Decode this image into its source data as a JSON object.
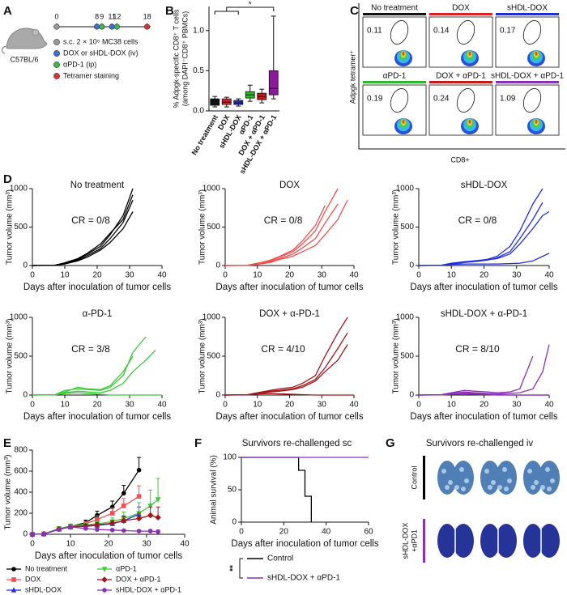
{
  "panel_labels": [
    "A",
    "B",
    "C",
    "D",
    "E",
    "F",
    "G"
  ],
  "schematic": {
    "mouse": "C57BL/6",
    "days": [
      0,
      8,
      9,
      11,
      12,
      18
    ],
    "day_colors": [
      "#9a9a9a",
      "#3a6fd8",
      "#3cb84a",
      "#3a6fd8",
      "#3cb84a",
      "#e03030"
    ],
    "legend": [
      {
        "label": "s.c. 2 × 10⁵ MC38 cells",
        "color": "#9a9a9a"
      },
      {
        "label": "DOX or sHDL-DOX (iv)",
        "color": "#3a6fd8"
      },
      {
        "label": "αPD-1 (ip)",
        "color": "#3cb84a"
      },
      {
        "label": "Tetramer staining",
        "color": "#e03030"
      }
    ]
  },
  "flow": {
    "y_label": "Adpgk tetramer⁺",
    "x_label": "CD8+",
    "plots": [
      {
        "title": "No treatment",
        "value": 0.11,
        "color": "#111111"
      },
      {
        "title": "DOX",
        "value": 0.14,
        "color": "#e02020"
      },
      {
        "title": "sHDL-DOX",
        "value": 0.17,
        "color": "#2030d0"
      },
      {
        "title": "αPD-1",
        "value": 0.19,
        "color": "#2eb82e"
      },
      {
        "title": "DOX + αPD-1",
        "value": 0.24,
        "color": "#c81818"
      },
      {
        "title": "sHDL-DOX + αPD-1",
        "value": 1.09,
        "color": "#8a2fb8"
      }
    ]
  },
  "photos": {
    "title": "Survivors re-challenged iv",
    "rows": [
      {
        "label": [
          "Control"
        ],
        "color": "#000000"
      },
      {
        "label": [
          "sHDL-DOX",
          "+αPD1"
        ],
        "color": "#8a2fb8"
      }
    ]
  },
  "chart_data": [
    {
      "type": "box",
      "ylabel": [
        "% Adpgk-specific CD8⁺ T cells",
        "(among DAPI⁻CD8⁺ PBMCs)"
      ],
      "categories": [
        "No treatment",
        "DOX",
        "sHDL-DOX",
        "αPD-1",
        "DOX + αPD-1",
        "sHDL-DOX + αPD-1"
      ],
      "colors": [
        "#111111",
        "#e02020",
        "#2030d0",
        "#2eb82e",
        "#c81818",
        "#8a1a9a"
      ],
      "boxes": [
        {
          "min": 0.05,
          "q1": 0.07,
          "median": 0.11,
          "q3": 0.15,
          "max": 0.18
        },
        {
          "min": 0.05,
          "q1": 0.08,
          "median": 0.11,
          "q3": 0.15,
          "max": 0.17
        },
        {
          "min": 0.06,
          "q1": 0.08,
          "median": 0.1,
          "q3": 0.13,
          "max": 0.15
        },
        {
          "min": 0.12,
          "q1": 0.16,
          "median": 0.2,
          "q3": 0.24,
          "max": 0.32
        },
        {
          "min": 0.1,
          "q1": 0.14,
          "median": 0.18,
          "q3": 0.22,
          "max": 0.27
        },
        {
          "min": 0.15,
          "q1": 0.2,
          "median": 0.28,
          "q3": 0.5,
          "max": 1.18
        }
      ],
      "ylim": [
        0,
        1.3
      ],
      "yticks": [
        {
          "value": 0,
          "label": "0.0"
        },
        {
          "value": 0.5,
          "label": "0.5"
        },
        {
          "value": 1,
          "label": "1.0"
        }
      ],
      "annotation": "*"
    },
    {
      "type": "line",
      "title": "No treatment",
      "annotation": "CR = 0/8",
      "color": "#000000",
      "xlabel": "Days after inoculation of tumor cells",
      "ylabel": "Tumor volume (mm³)",
      "xlim": [
        0,
        40
      ],
      "xticks": [
        0,
        10,
        20,
        30,
        40
      ],
      "ylim": [
        0,
        1000
      ],
      "yticks": [
        0,
        500,
        1000
      ],
      "x": [
        0,
        7,
        10,
        14,
        17,
        21,
        24,
        28,
        31,
        35,
        38,
        40
      ],
      "series": [
        {
          "values": [
            0,
            5,
            30,
            80,
            150,
            250,
            400,
            650,
            1000,
            null,
            null,
            null
          ]
        },
        {
          "values": [
            0,
            5,
            25,
            70,
            130,
            220,
            350,
            560,
            850,
            null,
            null,
            null
          ]
        },
        {
          "values": [
            0,
            3,
            20,
            60,
            110,
            200,
            300,
            480,
            700,
            null,
            null,
            null
          ]
        },
        {
          "values": [
            0,
            4,
            35,
            90,
            160,
            280,
            420,
            600,
            920,
            null,
            null,
            null
          ]
        }
      ]
    },
    {
      "type": "line",
      "title": "DOX",
      "annotation": "CR = 0/8",
      "color": "#f0504f",
      "xlabel": "Days after inoculation of tumor cells",
      "ylabel": "Tumor volume (mm³)",
      "xlim": [
        0,
        40
      ],
      "xticks": [
        0,
        10,
        20,
        30,
        40
      ],
      "ylim": [
        0,
        1000
      ],
      "yticks": [
        0,
        500,
        1000
      ],
      "x": [
        0,
        7,
        10,
        14,
        17,
        21,
        24,
        28,
        31,
        35,
        38,
        40
      ],
      "series": [
        {
          "values": [
            0,
            5,
            30,
            60,
            110,
            180,
            280,
            450,
            700,
            1000,
            null,
            null
          ]
        },
        {
          "values": [
            0,
            3,
            20,
            50,
            90,
            150,
            230,
            350,
            550,
            800,
            null,
            null
          ]
        },
        {
          "values": [
            0,
            4,
            25,
            70,
            120,
            200,
            320,
            520,
            780,
            null,
            null,
            null
          ]
        },
        {
          "values": [
            0,
            2,
            15,
            40,
            80,
            120,
            180,
            260,
            400,
            600,
            850,
            null
          ]
        }
      ]
    },
    {
      "type": "line",
      "title": "sHDL-DOX",
      "annotation": "CR = 0/8",
      "color": "#1f2fe0",
      "xlabel": "Days after inoculation of tumor cells",
      "ylabel": "Tumor volume (mm³)",
      "xlim": [
        0,
        40
      ],
      "xticks": [
        0,
        10,
        20,
        30,
        40
      ],
      "ylim": [
        0,
        1000
      ],
      "yticks": [
        0,
        500,
        1000
      ],
      "x": [
        0,
        7,
        10,
        14,
        17,
        21,
        24,
        28,
        31,
        35,
        38,
        40
      ],
      "series": [
        {
          "values": [
            0,
            5,
            30,
            50,
            60,
            80,
            120,
            250,
            450,
            800,
            1000,
            null
          ]
        },
        {
          "values": [
            0,
            4,
            20,
            40,
            50,
            70,
            100,
            180,
            350,
            600,
            820,
            null
          ]
        },
        {
          "values": [
            0,
            3,
            25,
            45,
            60,
            75,
            90,
            150,
            280,
            480,
            650,
            700
          ]
        },
        {
          "values": [
            0,
            3,
            15,
            20,
            20,
            20,
            20,
            25,
            30,
            60,
            120,
            160
          ]
        }
      ]
    },
    {
      "type": "line",
      "title": "α-PD-1",
      "annotation": "CR = 3/8",
      "color": "#3dc93a",
      "xlabel": "Days after inoculation of tumor cells",
      "ylabel": "Tumor volume (mm³)",
      "xlim": [
        0,
        40
      ],
      "xticks": [
        0,
        10,
        20,
        30,
        40
      ],
      "ylim": [
        0,
        1000
      ],
      "yticks": [
        0,
        500,
        1000
      ],
      "x": [
        0,
        7,
        10,
        14,
        17,
        21,
        24,
        28,
        31,
        35,
        38,
        40
      ],
      "series": [
        {
          "values": [
            0,
            5,
            60,
            80,
            70,
            60,
            100,
            250,
            550,
            750,
            null,
            null
          ]
        },
        {
          "values": [
            0,
            4,
            40,
            100,
            80,
            70,
            120,
            300,
            500,
            null,
            null,
            null
          ]
        },
        {
          "values": [
            0,
            3,
            30,
            50,
            40,
            30,
            60,
            150,
            300,
            450,
            580,
            null
          ]
        },
        {
          "values": [
            0,
            3,
            20,
            30,
            20,
            10,
            0,
            0,
            0,
            0,
            0,
            0
          ]
        }
      ]
    },
    {
      "type": "line",
      "title": "DOX + α-PD-1",
      "annotation": "CR = 4/10",
      "color": "#a3161a",
      "xlabel": "Days after inoculation of tumor cells",
      "ylabel": "Tumor volume (mm³)",
      "xlim": [
        0,
        40
      ],
      "xticks": [
        0,
        10,
        20,
        30,
        40
      ],
      "ylim": [
        0,
        1000
      ],
      "yticks": [
        0,
        500,
        1000
      ],
      "x": [
        0,
        7,
        10,
        14,
        17,
        21,
        24,
        28,
        31,
        35,
        38,
        40
      ],
      "series": [
        {
          "values": [
            0,
            5,
            30,
            60,
            80,
            100,
            150,
            250,
            500,
            800,
            1000,
            null
          ]
        },
        {
          "values": [
            0,
            4,
            25,
            50,
            60,
            80,
            120,
            200,
            350,
            600,
            800,
            null
          ]
        },
        {
          "values": [
            0,
            3,
            20,
            40,
            50,
            70,
            100,
            180,
            300,
            450,
            650,
            null
          ]
        },
        {
          "values": [
            0,
            2,
            15,
            20,
            15,
            10,
            5,
            0,
            0,
            0,
            0,
            0
          ]
        }
      ]
    },
    {
      "type": "line",
      "title": "sHDL-DOX + α-PD-1",
      "annotation": "CR = 8/10",
      "color": "#8a2fb8",
      "xlabel": "Days after inoculation of tumor cells",
      "ylabel": "Tumor volume (mm³)",
      "xlim": [
        0,
        40
      ],
      "xticks": [
        0,
        10,
        20,
        30,
        40
      ],
      "ylim": [
        0,
        1000
      ],
      "yticks": [
        0,
        500,
        1000
      ],
      "x": [
        0,
        7,
        10,
        14,
        17,
        21,
        24,
        28,
        31,
        35,
        38,
        40
      ],
      "series": [
        {
          "values": [
            0,
            5,
            30,
            60,
            50,
            40,
            30,
            40,
            80,
            500,
            null,
            null
          ]
        },
        {
          "values": [
            0,
            3,
            20,
            40,
            30,
            20,
            15,
            20,
            30,
            80,
            300,
            650
          ]
        },
        {
          "values": [
            0,
            3,
            25,
            30,
            20,
            10,
            5,
            0,
            0,
            0,
            0,
            0
          ]
        },
        {
          "values": [
            0,
            2,
            10,
            15,
            10,
            5,
            0,
            0,
            0,
            0,
            0,
            0
          ]
        }
      ]
    },
    {
      "type": "errorline",
      "xlabel": "Days after inoculation of tumor cells",
      "ylabel": "Tumor volume (mm³)",
      "xlim": [
        0,
        40
      ],
      "xticks": [
        0,
        10,
        20,
        30,
        40
      ],
      "ylim": [
        0,
        800
      ],
      "yticks": [
        0,
        200,
        400,
        600,
        800
      ],
      "x": [
        0,
        3,
        7,
        10,
        14,
        17,
        21,
        24,
        28,
        31,
        33
      ],
      "series": [
        {
          "name": "No treatment",
          "color": "#000000",
          "marker": "circle",
          "values": [
            0,
            3,
            50,
            75,
            110,
            180,
            260,
            390,
            610,
            null,
            null
          ],
          "errors": [
            0,
            2,
            10,
            15,
            25,
            40,
            55,
            75,
            120,
            null,
            null
          ]
        },
        {
          "name": "DOX",
          "color": "#f0504f",
          "marker": "square",
          "values": [
            0,
            3,
            48,
            72,
            100,
            140,
            200,
            270,
            360,
            null,
            null
          ],
          "errors": [
            0,
            2,
            8,
            12,
            20,
            35,
            50,
            70,
            100,
            null,
            null
          ]
        },
        {
          "name": "sHDL-DOX",
          "color": "#1f2fe0",
          "marker": "triangle",
          "values": [
            0,
            3,
            50,
            70,
            75,
            85,
            100,
            130,
            190,
            null,
            null
          ],
          "errors": [
            0,
            2,
            8,
            12,
            15,
            20,
            30,
            45,
            70,
            null,
            null
          ]
        },
        {
          "name": "αPD-1",
          "color": "#3dc93a",
          "marker": "triangle-down",
          "values": [
            0,
            3,
            55,
            80,
            90,
            100,
            120,
            150,
            200,
            270,
            330
          ],
          "errors": [
            0,
            2,
            10,
            15,
            20,
            25,
            35,
            60,
            100,
            150,
            200
          ]
        },
        {
          "name": "DOX + αPD-1",
          "color": "#a3161a",
          "marker": "diamond",
          "values": [
            0,
            3,
            50,
            70,
            80,
            90,
            105,
            130,
            150,
            180,
            160
          ],
          "errors": [
            0,
            2,
            8,
            10,
            15,
            20,
            25,
            40,
            50,
            80,
            100
          ]
        },
        {
          "name": "sHDL-DOX + αPD-1",
          "color": "#8a2fb8",
          "marker": "circle",
          "values": [
            0,
            3,
            45,
            70,
            55,
            45,
            40,
            35,
            30,
            30,
            25
          ],
          "errors": [
            0,
            2,
            8,
            12,
            10,
            10,
            10,
            10,
            10,
            15,
            15
          ]
        }
      ]
    },
    {
      "type": "step",
      "title": "Survivors re-challenged sc",
      "xlabel": "Days after inoculation of tumor cells",
      "ylabel": "Animal survival (%)",
      "xlim": [
        0,
        60
      ],
      "xticks": [
        0,
        20,
        40,
        60
      ],
      "ylim": [
        0,
        100
      ],
      "yticks": [
        0,
        50,
        100
      ],
      "annotation": "**",
      "series": [
        {
          "name": "Control",
          "color": "#000000",
          "x": [
            0,
            27,
            30,
            33
          ],
          "values": [
            100,
            80,
            40,
            0
          ]
        },
        {
          "name": "sHDL-DOX + αPD-1",
          "color": "#8a2fb8",
          "x": [
            0,
            60
          ],
          "values": [
            100,
            100
          ]
        }
      ]
    }
  ]
}
